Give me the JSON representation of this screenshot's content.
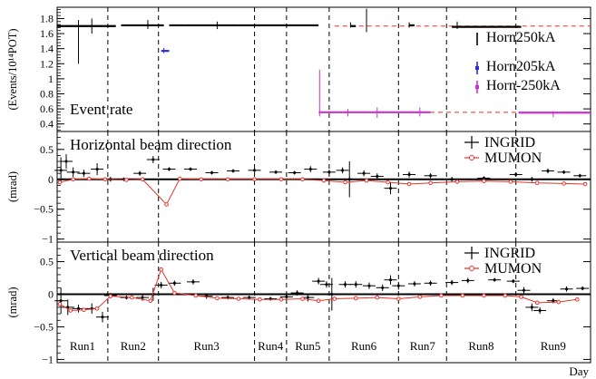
{
  "chart_data": [
    {
      "type": "scatter",
      "panel": "event-rate",
      "ylabel": "(Events/10¹⁴POT)",
      "annotation": "Event rate",
      "ylim": [
        0.3,
        1.95
      ],
      "yticks": [
        0.4,
        0.6,
        0.8,
        1.0,
        1.2,
        1.4,
        1.6,
        1.8
      ],
      "ytick_labels": [
        "0.4",
        "0.6",
        "0.8",
        "1",
        "1.2",
        "1.4",
        "1.6",
        "1.8"
      ],
      "legend_position": "right",
      "reference_lines": [
        {
          "series": "Horn250kA",
          "y": 1.7,
          "color": "#e8312a",
          "style": "dashed",
          "x_from": 0.52
        },
        {
          "series": "Horn-250kA",
          "y": 0.555,
          "color": "#e8312a",
          "style": "dashed",
          "x_from": 0.5
        }
      ],
      "series": [
        {
          "name": "Horn250kA",
          "color": "#000000",
          "segments": [
            {
              "x": [
                0.0,
                0.11
              ],
              "y": 1.7
            },
            {
              "x": [
                0.12,
                0.2
              ],
              "y": 1.71
            },
            {
              "x": [
                0.21,
                0.24
              ],
              "y": 1.71
            },
            {
              "x": [
                0.24,
                0.34
              ],
              "y": 1.71
            },
            {
              "x": [
                0.34,
                0.49
              ],
              "y": 1.71
            },
            {
              "x": [
                0.55,
                0.56
              ],
              "y": 1.7
            },
            {
              "x": [
                0.66,
                0.67
              ],
              "y": 1.71
            },
            {
              "x": [
                0.74,
                0.87
              ],
              "y": 1.69
            }
          ],
          "spikes": [
            {
              "x": 0.04,
              "low": 1.2,
              "high": 1.78
            },
            {
              "x": 0.065,
              "low": 1.6,
              "high": 1.8
            },
            {
              "x": 0.17,
              "low": 1.66,
              "high": 1.78
            },
            {
              "x": 0.3,
              "low": 1.66,
              "high": 1.76
            },
            {
              "x": 0.55,
              "low": 1.68,
              "high": 1.75
            },
            {
              "x": 0.58,
              "low": 1.62,
              "high": 1.93
            },
            {
              "x": 0.66,
              "low": 1.68,
              "high": 1.75
            },
            {
              "x": 0.75,
              "low": 1.66,
              "high": 1.76
            }
          ]
        },
        {
          "name": "Horn205kA",
          "color": "#2b2bd9",
          "segments": [
            {
              "x": [
                0.195,
                0.21
              ],
              "y": 1.37
            }
          ],
          "spikes": [
            {
              "x": 0.2,
              "low": 1.34,
              "high": 1.41
            }
          ]
        },
        {
          "name": "Horn-250kA",
          "color": "#cc33cc",
          "segments": [
            {
              "x": [
                0.4905,
                0.7
              ],
              "y": 0.555
            },
            {
              "x": [
                0.865,
                1.0
              ],
              "y": 0.55
            }
          ],
          "spikes": [
            {
              "x": 0.492,
              "low": 0.5,
              "high": 1.12
            },
            {
              "x": 0.545,
              "low": 0.5,
              "high": 0.6
            },
            {
              "x": 0.6,
              "low": 0.48,
              "high": 0.62
            },
            {
              "x": 0.68,
              "low": 0.5,
              "high": 0.62
            },
            {
              "x": 0.93,
              "low": 0.49,
              "high": 0.57
            }
          ]
        }
      ]
    },
    {
      "type": "scatter",
      "panel": "horizontal",
      "annotation": "Horizontal beam direction",
      "ylabel": "(mrad)",
      "ylim": [
        -1.05,
        0.8
      ],
      "yticks": [
        -1,
        -0.5,
        0,
        0.5
      ],
      "ytick_labels": [
        "−1",
        "−0.5",
        "0",
        "0.5"
      ],
      "legend_position": "top-right",
      "series": [
        {
          "name": "INGRID",
          "color": "#000000",
          "points": [
            {
              "x": 0.007,
              "y": 0.15,
              "err": 0.22
            },
            {
              "x": 0.017,
              "y": 0.3,
              "err": 0.12
            },
            {
              "x": 0.03,
              "y": 0.12,
              "err": 0.08
            },
            {
              "x": 0.05,
              "y": 0.1,
              "err": 0.06
            },
            {
              "x": 0.075,
              "y": 0.17,
              "err": 0.1
            },
            {
              "x": 0.1,
              "y": 0.0,
              "err": 0.04
            },
            {
              "x": 0.125,
              "y": 0.0,
              "err": 0.03
            },
            {
              "x": 0.155,
              "y": 0.1,
              "err": 0.04
            },
            {
              "x": 0.18,
              "y": 0.33,
              "err": 0.06
            },
            {
              "x": 0.21,
              "y": 0.17,
              "err": 0.03
            },
            {
              "x": 0.25,
              "y": 0.17,
              "err": 0.03
            },
            {
              "x": 0.29,
              "y": 0.11,
              "err": 0.03
            },
            {
              "x": 0.33,
              "y": 0.14,
              "err": 0.03
            },
            {
              "x": 0.37,
              "y": 0.15,
              "err": 0.03
            },
            {
              "x": 0.41,
              "y": 0.12,
              "err": 0.03
            },
            {
              "x": 0.445,
              "y": 0.11,
              "err": 0.03
            },
            {
              "x": 0.475,
              "y": 0.17,
              "err": 0.05
            },
            {
              "x": 0.51,
              "y": 0.12,
              "err": 0.04
            },
            {
              "x": 0.535,
              "y": 0.15,
              "err": 0.05
            },
            {
              "x": 0.548,
              "y": 0.0,
              "err": 0.3
            },
            {
              "x": 0.575,
              "y": 0.1,
              "err": 0.05
            },
            {
              "x": 0.6,
              "y": 0.05,
              "err": 0.05
            },
            {
              "x": 0.625,
              "y": -0.15,
              "err": 0.1
            },
            {
              "x": 0.66,
              "y": 0.08,
              "err": 0.05
            },
            {
              "x": 0.7,
              "y": 0.06,
              "err": 0.04
            },
            {
              "x": 0.74,
              "y": 0.0,
              "err": 0.04
            },
            {
              "x": 0.8,
              "y": 0.02,
              "err": 0.03
            },
            {
              "x": 0.86,
              "y": 0.08,
              "err": 0.03
            },
            {
              "x": 0.89,
              "y": 0.0,
              "err": 0.04
            },
            {
              "x": 0.92,
              "y": 0.14,
              "err": 0.04
            },
            {
              "x": 0.95,
              "y": 0.12,
              "err": 0.03
            },
            {
              "x": 0.98,
              "y": 0.06,
              "err": 0.03
            }
          ]
        },
        {
          "name": "MUMON",
          "color": "#e8312a",
          "points": [
            {
              "x": 0.005,
              "y": -0.05
            },
            {
              "x": 0.03,
              "y": 0.0
            },
            {
              "x": 0.06,
              "y": 0.01
            },
            {
              "x": 0.09,
              "y": 0.0
            },
            {
              "x": 0.13,
              "y": -0.01
            },
            {
              "x": 0.16,
              "y": 0.0
            },
            {
              "x": 0.205,
              "y": -0.42
            },
            {
              "x": 0.23,
              "y": 0.01
            },
            {
              "x": 0.27,
              "y": 0.0
            },
            {
              "x": 0.32,
              "y": 0.0
            },
            {
              "x": 0.37,
              "y": 0.0
            },
            {
              "x": 0.42,
              "y": 0.0
            },
            {
              "x": 0.46,
              "y": 0.0
            },
            {
              "x": 0.5,
              "y": -0.02
            },
            {
              "x": 0.54,
              "y": -0.05
            },
            {
              "x": 0.58,
              "y": -0.02
            },
            {
              "x": 0.62,
              "y": -0.05
            },
            {
              "x": 0.66,
              "y": -0.08
            },
            {
              "x": 0.7,
              "y": -0.06
            },
            {
              "x": 0.75,
              "y": -0.04
            },
            {
              "x": 0.8,
              "y": -0.03
            },
            {
              "x": 0.85,
              "y": -0.04
            },
            {
              "x": 0.9,
              "y": -0.06
            },
            {
              "x": 0.95,
              "y": -0.07
            },
            {
              "x": 0.99,
              "y": -0.08
            }
          ]
        }
      ]
    },
    {
      "type": "scatter",
      "panel": "vertical",
      "annotation": "Vertical beam direction",
      "ylabel": "(mrad)",
      "xlabel": "Day",
      "ylim": [
        -1.05,
        0.8
      ],
      "yticks": [
        -1,
        -0.5,
        0,
        0.5
      ],
      "ytick_labels": [
        "−1",
        "−0.5",
        "0",
        "0.5"
      ],
      "legend_position": "top-right",
      "run_boundaries": [
        0.095,
        0.19,
        0.37,
        0.43,
        0.51,
        0.64,
        0.73,
        0.86
      ],
      "run_labels": [
        "Run1",
        "Run2",
        "Run3",
        "Run4",
        "Run5",
        "Run6",
        "Run7",
        "Run8",
        "Run9"
      ],
      "series": [
        {
          "name": "INGRID",
          "color": "#000000",
          "points": [
            {
              "x": 0.007,
              "y": -0.1,
              "err": 0.2
            },
            {
              "x": 0.02,
              "y": -0.2,
              "err": 0.12
            },
            {
              "x": 0.04,
              "y": -0.22,
              "err": 0.06
            },
            {
              "x": 0.065,
              "y": -0.22,
              "err": 0.08
            },
            {
              "x": 0.085,
              "y": -0.35,
              "err": 0.08
            },
            {
              "x": 0.1,
              "y": -0.02,
              "err": 0.04
            },
            {
              "x": 0.13,
              "y": -0.05,
              "err": 0.03
            },
            {
              "x": 0.16,
              "y": -0.05,
              "err": 0.05
            },
            {
              "x": 0.18,
              "y": 0.0,
              "err": 0.1
            },
            {
              "x": 0.195,
              "y": 0.14,
              "err": 0.05
            },
            {
              "x": 0.22,
              "y": 0.17,
              "err": 0.04
            },
            {
              "x": 0.255,
              "y": 0.19,
              "err": 0.04
            },
            {
              "x": 0.28,
              "y": -0.03,
              "err": 0.04
            },
            {
              "x": 0.32,
              "y": -0.05,
              "err": 0.03
            },
            {
              "x": 0.36,
              "y": -0.05,
              "err": 0.03
            },
            {
              "x": 0.4,
              "y": -0.07,
              "err": 0.03
            },
            {
              "x": 0.43,
              "y": -0.04,
              "err": 0.03
            },
            {
              "x": 0.45,
              "y": 0.02,
              "err": 0.04
            },
            {
              "x": 0.47,
              "y": -0.05,
              "err": 0.06
            },
            {
              "x": 0.49,
              "y": 0.2,
              "err": 0.05
            },
            {
              "x": 0.505,
              "y": 0.15,
              "err": 0.05
            },
            {
              "x": 0.515,
              "y": 0.0,
              "err": 0.25
            },
            {
              "x": 0.54,
              "y": 0.15,
              "err": 0.05
            },
            {
              "x": 0.56,
              "y": 0.15,
              "err": 0.05
            },
            {
              "x": 0.585,
              "y": 0.13,
              "err": 0.05
            },
            {
              "x": 0.61,
              "y": 0.1,
              "err": 0.05
            },
            {
              "x": 0.625,
              "y": 0.22,
              "err": 0.07
            },
            {
              "x": 0.64,
              "y": 0.13,
              "err": 0.06
            },
            {
              "x": 0.67,
              "y": 0.16,
              "err": 0.04
            },
            {
              "x": 0.7,
              "y": 0.17,
              "err": 0.04
            },
            {
              "x": 0.74,
              "y": 0.18,
              "err": 0.04
            },
            {
              "x": 0.77,
              "y": 0.21,
              "err": 0.04
            },
            {
              "x": 0.82,
              "y": 0.22,
              "err": 0.03
            },
            {
              "x": 0.855,
              "y": 0.2,
              "err": 0.03
            },
            {
              "x": 0.875,
              "y": 0.06,
              "err": 0.05
            },
            {
              "x": 0.89,
              "y": -0.2,
              "err": 0.06
            },
            {
              "x": 0.905,
              "y": -0.25,
              "err": 0.05
            },
            {
              "x": 0.93,
              "y": -0.1,
              "err": 0.04
            },
            {
              "x": 0.955,
              "y": 0.08,
              "err": 0.04
            },
            {
              "x": 0.985,
              "y": 0.09,
              "err": 0.03
            }
          ]
        },
        {
          "name": "MUMON",
          "color": "#e8312a",
          "points": [
            {
              "x": 0.005,
              "y": -0.15
            },
            {
              "x": 0.025,
              "y": -0.25
            },
            {
              "x": 0.05,
              "y": -0.24
            },
            {
              "x": 0.075,
              "y": -0.22
            },
            {
              "x": 0.1,
              "y": -0.03
            },
            {
              "x": 0.14,
              "y": -0.05
            },
            {
              "x": 0.175,
              "y": -0.1
            },
            {
              "x": 0.195,
              "y": 0.38
            },
            {
              "x": 0.22,
              "y": 0.02
            },
            {
              "x": 0.26,
              "y": -0.02
            },
            {
              "x": 0.3,
              "y": -0.06
            },
            {
              "x": 0.34,
              "y": -0.07
            },
            {
              "x": 0.38,
              "y": -0.08
            },
            {
              "x": 0.42,
              "y": -0.08
            },
            {
              "x": 0.46,
              "y": -0.07
            },
            {
              "x": 0.49,
              "y": -0.1
            },
            {
              "x": 0.52,
              "y": -0.07
            },
            {
              "x": 0.56,
              "y": -0.06
            },
            {
              "x": 0.6,
              "y": -0.05
            },
            {
              "x": 0.64,
              "y": -0.07
            },
            {
              "x": 0.68,
              "y": -0.04
            },
            {
              "x": 0.72,
              "y": -0.02
            },
            {
              "x": 0.76,
              "y": -0.02
            },
            {
              "x": 0.8,
              "y": -0.02
            },
            {
              "x": 0.84,
              "y": -0.02
            },
            {
              "x": 0.87,
              "y": -0.04
            },
            {
              "x": 0.9,
              "y": -0.13
            },
            {
              "x": 0.94,
              "y": -0.12
            },
            {
              "x": 0.975,
              "y": -0.08
            }
          ]
        }
      ]
    }
  ]
}
